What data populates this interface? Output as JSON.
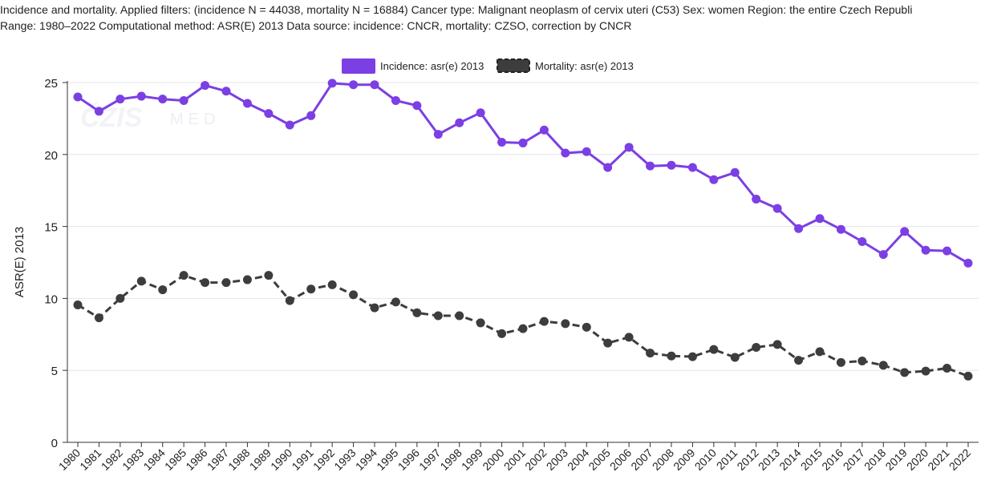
{
  "header": {
    "line1": "Incidence and mortality. Applied filters: (incidence N = 44038, mortality N = 16884) Cancer type: Malignant neoplasm of cervix uteri (C53) Sex: women Region: the entire Czech Republi",
    "line2": "Range: 1980–2022 Computational method: ASR(E) 2013 Data source: incidence: CNCR, mortality: CZSO, correction by CNCR"
  },
  "watermark": {
    "text": "MED"
  },
  "chart_data": {
    "type": "line",
    "ylabel": "ASR(E) 2013",
    "xlabel": "",
    "ylim": [
      0,
      25
    ],
    "yticks": [
      0,
      5,
      10,
      15,
      20,
      25
    ],
    "grid": "horizontal",
    "legend_position": "top-center",
    "x": [
      1980,
      1981,
      1982,
      1983,
      1984,
      1985,
      1986,
      1987,
      1988,
      1989,
      1990,
      1991,
      1992,
      1993,
      1994,
      1995,
      1996,
      1997,
      1998,
      1999,
      2000,
      2001,
      2002,
      2003,
      2004,
      2005,
      2006,
      2007,
      2008,
      2009,
      2010,
      2011,
      2012,
      2013,
      2014,
      2015,
      2016,
      2017,
      2018,
      2019,
      2020,
      2021,
      2022
    ],
    "series": [
      {
        "name": "Incidence: asr(e) 2013",
        "color": "#7b3fe4",
        "dash": "solid",
        "values": [
          24.0,
          23.0,
          23.85,
          24.05,
          23.85,
          23.75,
          24.8,
          24.4,
          23.55,
          22.85,
          22.05,
          22.7,
          24.95,
          24.85,
          24.85,
          23.75,
          23.4,
          21.4,
          22.2,
          22.9,
          20.85,
          20.8,
          21.7,
          20.1,
          20.2,
          19.1,
          20.5,
          19.2,
          19.25,
          19.1,
          18.25,
          18.75,
          16.9,
          16.25,
          14.85,
          15.55,
          14.8,
          13.95,
          13.05,
          14.65,
          13.35,
          13.3,
          12.45
        ]
      },
      {
        "name": "Mortality: asr(e) 2013",
        "color": "#3d3d3d",
        "dash": "dashed",
        "values": [
          9.55,
          8.65,
          10.0,
          11.2,
          10.6,
          11.6,
          11.1,
          11.1,
          11.3,
          11.6,
          9.85,
          10.65,
          10.95,
          10.25,
          9.35,
          9.75,
          9.0,
          8.8,
          8.8,
          8.3,
          7.55,
          7.9,
          8.4,
          8.25,
          8.0,
          6.9,
          7.3,
          6.2,
          6.0,
          5.95,
          6.45,
          5.9,
          6.6,
          6.8,
          5.7,
          6.3,
          5.55,
          5.65,
          5.35,
          4.85,
          4.95,
          5.15,
          4.6
        ]
      }
    ]
  }
}
